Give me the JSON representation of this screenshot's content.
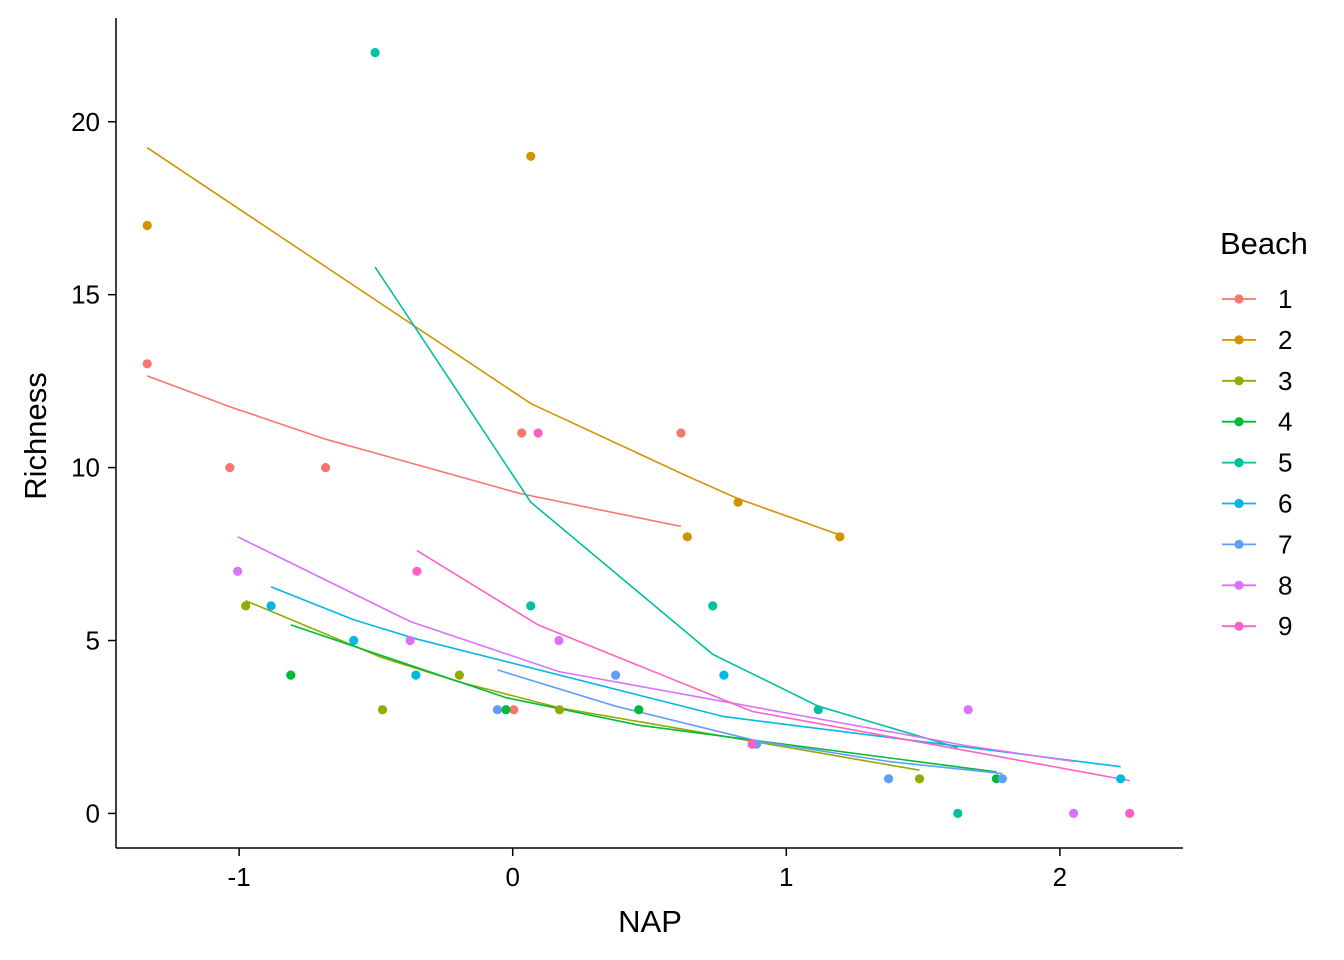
{
  "chart_data": {
    "type": "scatter",
    "xlabel": "NAP",
    "ylabel": "Richness",
    "xlim": [
      -1.45,
      2.45
    ],
    "ylim": [
      -1,
      23
    ],
    "x_ticks": [
      -1,
      0,
      1,
      2
    ],
    "x_tick_labels": [
      "-1",
      "0",
      "1",
      "2"
    ],
    "y_ticks": [
      0,
      5,
      10,
      15,
      20
    ],
    "y_tick_labels": [
      "0",
      "5",
      "10",
      "15",
      "20"
    ],
    "grid": false,
    "legend": {
      "title": "Beach",
      "placement": "right"
    },
    "series": [
      {
        "name": "1",
        "color": "#F8766D",
        "points": [
          [
            -1.336,
            13
          ],
          [
            -1.034,
            10
          ],
          [
            -0.684,
            10
          ],
          [
            0.033,
            11
          ],
          [
            0.004,
            3
          ],
          [
            0.615,
            11
          ]
        ],
        "fit": [
          [
            -1.336,
            12.65
          ],
          [
            -1.034,
            11.76
          ],
          [
            -0.684,
            10.82
          ],
          [
            0.004,
            9.3
          ],
          [
            0.033,
            9.24
          ],
          [
            0.615,
            8.3
          ]
        ]
      },
      {
        "name": "2",
        "color": "#D39200",
        "points": [
          [
            -1.336,
            17
          ],
          [
            0.066,
            19
          ],
          [
            0.638,
            8
          ],
          [
            0.824,
            9
          ],
          [
            1.196,
            8
          ]
        ],
        "fit": [
          [
            -1.336,
            19.25
          ],
          [
            0.066,
            11.85
          ],
          [
            0.638,
            9.75
          ],
          [
            0.824,
            9.1
          ],
          [
            1.196,
            8.05
          ]
        ]
      },
      {
        "name": "3",
        "color": "#93AA00",
        "points": [
          [
            -0.976,
            6
          ],
          [
            -0.476,
            3
          ],
          [
            -0.195,
            4
          ],
          [
            0.171,
            3
          ],
          [
            1.487,
            1
          ]
        ],
        "fit": [
          [
            -0.976,
            6.15
          ],
          [
            -0.476,
            4.5
          ],
          [
            -0.195,
            3.8
          ],
          [
            0.171,
            3.05
          ],
          [
            1.487,
            1.25
          ]
        ]
      },
      {
        "name": "4",
        "color": "#00BA38",
        "points": [
          [
            -0.811,
            4
          ],
          [
            -0.025,
            3
          ],
          [
            0.461,
            3
          ],
          [
            1.768,
            1
          ]
        ],
        "fit": [
          [
            -0.811,
            5.45
          ],
          [
            -0.025,
            3.35
          ],
          [
            0.461,
            2.55
          ],
          [
            1.768,
            1.2
          ]
        ]
      },
      {
        "name": "5",
        "color": "#00C19F",
        "points": [
          [
            -0.503,
            22
          ],
          [
            0.066,
            6
          ],
          [
            0.731,
            6
          ],
          [
            1.117,
            3
          ],
          [
            1.627,
            0
          ]
        ],
        "fit": [
          [
            -0.503,
            15.8
          ],
          [
            0.066,
            9.0
          ],
          [
            0.731,
            4.6
          ],
          [
            1.117,
            3.1
          ],
          [
            1.627,
            1.9
          ]
        ]
      },
      {
        "name": "6",
        "color": "#00B9E3",
        "points": [
          [
            -0.883,
            6
          ],
          [
            -0.581,
            5
          ],
          [
            -0.354,
            4
          ],
          [
            0.772,
            4
          ],
          [
            2.222,
            1
          ]
        ],
        "fit": [
          [
            -0.883,
            6.55
          ],
          [
            -0.581,
            5.6
          ],
          [
            -0.354,
            5.05
          ],
          [
            0.772,
            2.8
          ],
          [
            2.222,
            1.35
          ]
        ]
      },
      {
        "name": "7",
        "color": "#619CFF",
        "points": [
          [
            -0.056,
            3
          ],
          [
            0.376,
            4
          ],
          [
            0.891,
            2
          ],
          [
            1.374,
            1
          ],
          [
            1.79,
            1
          ]
        ],
        "fit": [
          [
            -0.056,
            4.15
          ],
          [
            0.376,
            3.1
          ],
          [
            0.891,
            2.1
          ],
          [
            1.374,
            1.5
          ],
          [
            1.79,
            1.15
          ]
        ]
      },
      {
        "name": "8",
        "color": "#DB72FB",
        "points": [
          [
            -1.005,
            7
          ],
          [
            -0.375,
            5
          ],
          [
            0.169,
            5
          ],
          [
            1.665,
            3
          ],
          [
            2.05,
            0
          ]
        ],
        "fit": [
          [
            -1.005,
            8.0
          ],
          [
            -0.375,
            5.55
          ],
          [
            0.169,
            4.1
          ],
          [
            1.665,
            1.95
          ],
          [
            2.05,
            1.5
          ]
        ]
      },
      {
        "name": "9",
        "color": "#FF61C3",
        "points": [
          [
            -0.35,
            7
          ],
          [
            0.093,
            11
          ],
          [
            0.875,
            2
          ],
          [
            2.255,
            0
          ]
        ],
        "fit": [
          [
            -0.35,
            7.6
          ],
          [
            0.093,
            5.45
          ],
          [
            0.875,
            2.95
          ],
          [
            2.255,
            0.95
          ]
        ]
      }
    ]
  }
}
